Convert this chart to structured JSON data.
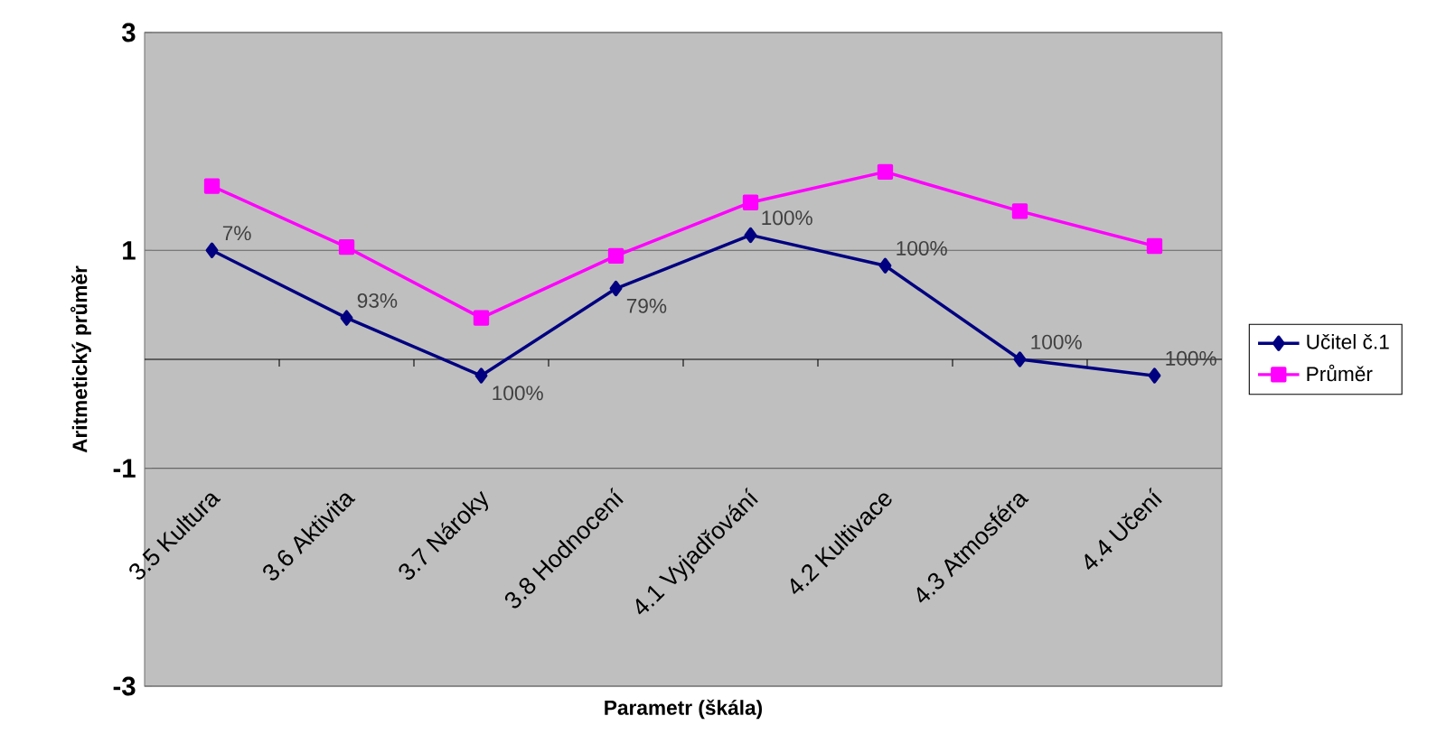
{
  "chart_data": {
    "type": "line",
    "xlabel": "Parametr (škála)",
    "ylabel": "Aritmetický průměr",
    "categories": [
      "3.5 Kultura",
      "3.6 Aktivita",
      "3.7 Nároky",
      "3.8 Hodnocení",
      "4.1 Vyjadřování",
      "4.2 Kultivace",
      "4.3 Atmosféra",
      "4.4 Učení"
    ],
    "series": [
      {
        "name": "Učitel č.1",
        "color": "#000080",
        "marker": "diamond",
        "values": [
          1.0,
          0.38,
          -0.15,
          0.65,
          1.14,
          0.86,
          0.0,
          -0.15
        ]
      },
      {
        "name": "Průměr",
        "color": "#ff00ff",
        "marker": "square",
        "values": [
          1.59,
          1.03,
          0.38,
          0.95,
          1.44,
          1.72,
          1.36,
          1.04
        ]
      }
    ],
    "annotations": [
      {
        "text": "7%",
        "x": "3.5 Kultura",
        "y": 1.0
      },
      {
        "text": "93%",
        "x": "3.6 Aktivita",
        "y": 0.38
      },
      {
        "text": "100%",
        "x": "3.7 Nároky",
        "y": -0.15
      },
      {
        "text": "79%",
        "x": "3.8 Hodnocení",
        "y": 0.65
      },
      {
        "text": "100%",
        "x": "4.1 Vyjadřování",
        "y": 1.14
      },
      {
        "text": "100%",
        "x": "4.2 Kultivace",
        "y": 0.86
      },
      {
        "text": "100%",
        "x": "4.3 Atmosféra",
        "y": 0.0
      },
      {
        "text": "100%",
        "x": "4.4 Učení",
        "y": -0.15
      }
    ],
    "ylim": [
      -3,
      3
    ],
    "yticks": [
      3,
      1,
      -1,
      -3
    ],
    "grid": "y",
    "legend": "right",
    "line_style": "solid"
  }
}
